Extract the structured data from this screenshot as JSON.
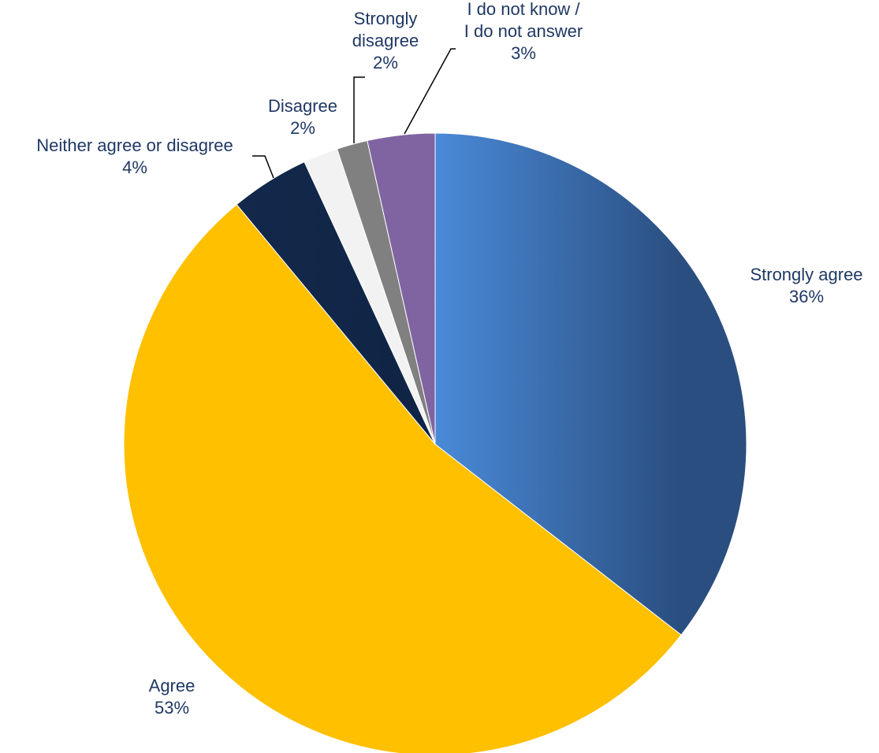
{
  "chart_data": {
    "type": "pie",
    "start_angle_deg": 0,
    "direction": "clockwise",
    "slices": [
      {
        "label_lines": [
          "Strongly agree"
        ],
        "percent_label": "36%",
        "value": 35.5,
        "color": "#4A8AD8",
        "color_end": "#2A4E7F",
        "gradient": true
      },
      {
        "label_lines": [
          "Agree"
        ],
        "percent_label": "53%",
        "value": 53.5,
        "color": "#FFC000"
      },
      {
        "label_lines": [
          "Neither agree or disagree"
        ],
        "percent_label": "4%",
        "value": 4.1,
        "color": "#13294B",
        "color_end": "#0F2445",
        "gradient": true
      },
      {
        "label_lines": [
          "Disagree"
        ],
        "percent_label": "2%",
        "value": 1.8,
        "color": "#F2F2F2"
      },
      {
        "label_lines": [
          "Strongly",
          "disagree"
        ],
        "percent_label": "2%",
        "value": 1.6,
        "color": "#808080"
      },
      {
        "label_lines": [
          "I do not know /",
          "I do not answer"
        ],
        "percent_label": "3%",
        "value": 3.5,
        "color": "#8064A2"
      }
    ],
    "legend": "none",
    "data_labels": "category and percentage, outside end with leader lines"
  }
}
